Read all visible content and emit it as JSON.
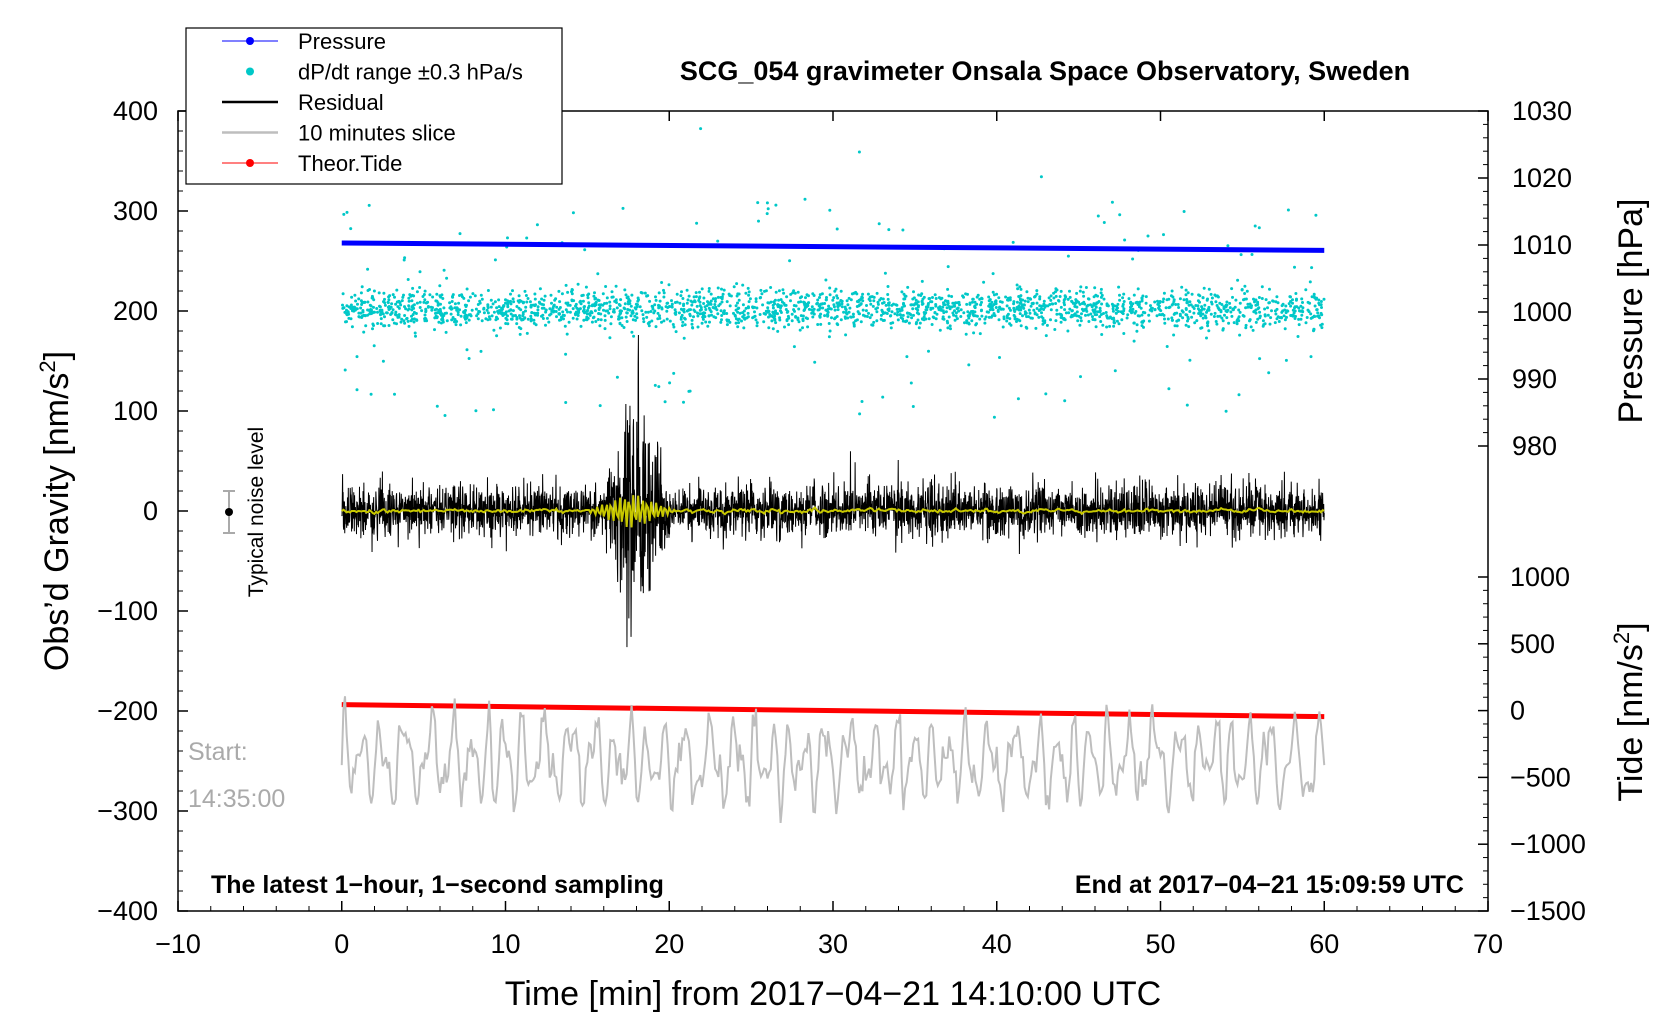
{
  "chart_data": {
    "type": "line",
    "title": "SCG_054 gravimeter Onsala Space Observatory, Sweden",
    "xlabel": "Time [min] from 2017−04−21 14:10:00 UTC",
    "ylabel": "Obs’d Gravity [nm/s²]",
    "ylabel_main": "Obs’d Gravity [nm/s",
    "ylabel_sup": "2",
    "ylabel_close": "]",
    "pressure_label": "Pressure [hPa]",
    "tide_label_main": "Tide [nm/s",
    "tide_label_sup": "2",
    "tide_label_close": "]",
    "xlim": [
      -10,
      70
    ],
    "ylim": [
      -400,
      400
    ],
    "x_ticks": [
      "−10",
      "0",
      "10",
      "20",
      "30",
      "40",
      "50",
      "60",
      "70"
    ],
    "x_tick_values": [
      -10,
      0,
      10,
      20,
      30,
      40,
      50,
      60,
      70
    ],
    "y_ticks": [
      "400",
      "300",
      "200",
      "100",
      "0",
      "−100",
      "−200",
      "−300",
      "−400"
    ],
    "y_tick_values": [
      400,
      300,
      200,
      100,
      0,
      -100,
      -200,
      -300,
      -400
    ],
    "pressure_axis": {
      "range": [
        980,
        1030
      ],
      "ticks": [
        "1030",
        "1020",
        "1010",
        "1000",
        "990",
        "980"
      ],
      "tick_values": [
        1030,
        1020,
        1010,
        1000,
        990,
        980
      ]
    },
    "tide_axis": {
      "range": [
        -1500,
        1000
      ],
      "ticks": [
        "1000",
        "500",
        "0",
        "−500",
        "−1000",
        "−1500"
      ],
      "tick_values": [
        1000,
        500,
        0,
        -500,
        -1000,
        -1500
      ]
    },
    "legend": [
      {
        "label": "Pressure",
        "color": "#0000ff",
        "style": "line-dot"
      },
      {
        "label": "dP/dt range ±0.3 hPa/s",
        "color": "#00c8c8",
        "style": "dot"
      },
      {
        "label": "Residual",
        "color": "#000000",
        "style": "line"
      },
      {
        "label": "10 minutes slice",
        "color": "#bebebe",
        "style": "line"
      },
      {
        "label": "Theor.Tide",
        "color": "#ff0000",
        "style": "line-dot"
      }
    ],
    "series": [
      {
        "name": "Pressure",
        "axis": "pressure_hPa",
        "x": [
          0,
          60
        ],
        "values": [
          1010.3,
          1009.2
        ]
      },
      {
        "name": "dP/dt range ±0.3 hPa/s",
        "axis": "gravity_nm_s2",
        "description_values": {
          "center": 202,
          "typical_spread": 30,
          "outlier_min": 75,
          "outlier_max": 385
        }
      },
      {
        "name": "Residual",
        "axis": "gravity_nm_s2",
        "x": [
          0,
          60
        ],
        "envelope_typical": 35,
        "burst": {
          "x_range": [
            16,
            20
          ],
          "peak_max": 185,
          "peak_min": -162
        }
      },
      {
        "name": "10 minutes slice",
        "axis": "gravity_nm_s2",
        "center": -250,
        "amplitude": 50
      },
      {
        "name": "Theor.Tide",
        "axis": "tide_nm_s2",
        "x": [
          0,
          60
        ],
        "values": [
          45,
          -45
        ]
      },
      {
        "name": "Smoothed residual",
        "axis": "gravity_nm_s2",
        "color": "#c8c800",
        "center": 0
      }
    ],
    "noise_marker": {
      "label": "Typical noise level",
      "x": -7,
      "y": 0,
      "range": 20
    },
    "annotations": {
      "start_label": "Start:",
      "start_time": "14:35:00",
      "bottom_left": "The latest 1−hour, 1−second sampling",
      "bottom_right": "End at 2017−04−21 15:09:59 UTC"
    },
    "colors": {
      "pressure": "#0000ff",
      "dpdt": "#00c8c8",
      "residual": "#000000",
      "slice": "#bebebe",
      "tide": "#ff0000",
      "smooth": "#c8c800",
      "start_label": "#aaaaaa"
    }
  }
}
